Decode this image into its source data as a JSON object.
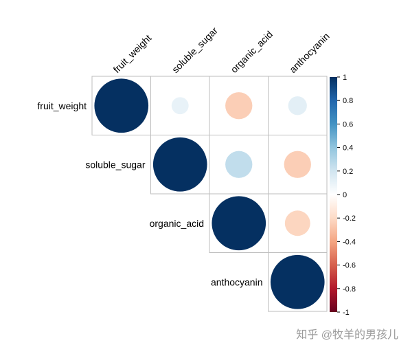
{
  "chart_data": {
    "type": "heatmap",
    "variables": [
      "fruit_weight",
      "soluble_sugar",
      "organic_acid",
      "anthocyanin"
    ],
    "correlations": [
      [
        1.0,
        0.1,
        -0.25,
        0.12
      ],
      [
        0.1,
        1.0,
        0.25,
        -0.25
      ],
      [
        -0.25,
        0.25,
        1.0,
        -0.22
      ],
      [
        0.12,
        -0.25,
        -0.22,
        1.0
      ]
    ],
    "display": "upper",
    "method": "circle",
    "colorbar": {
      "range": [
        -1,
        1
      ],
      "ticks": [
        "1",
        "0.8",
        "0.6",
        "0.4",
        "0.2",
        "0",
        "-0.2",
        "-0.4",
        "-0.6",
        "-0.8",
        "-1"
      ],
      "colors": [
        "#67001F",
        "#B2182B",
        "#D6604D",
        "#F4A582",
        "#FDDBC7",
        "#FFFFFF",
        "#D1E5F0",
        "#92C5DE",
        "#4393C3",
        "#2166AC",
        "#053061"
      ]
    },
    "grid_color": "#BEBEBE"
  },
  "watermark": "知乎 @牧羊的男孩儿"
}
